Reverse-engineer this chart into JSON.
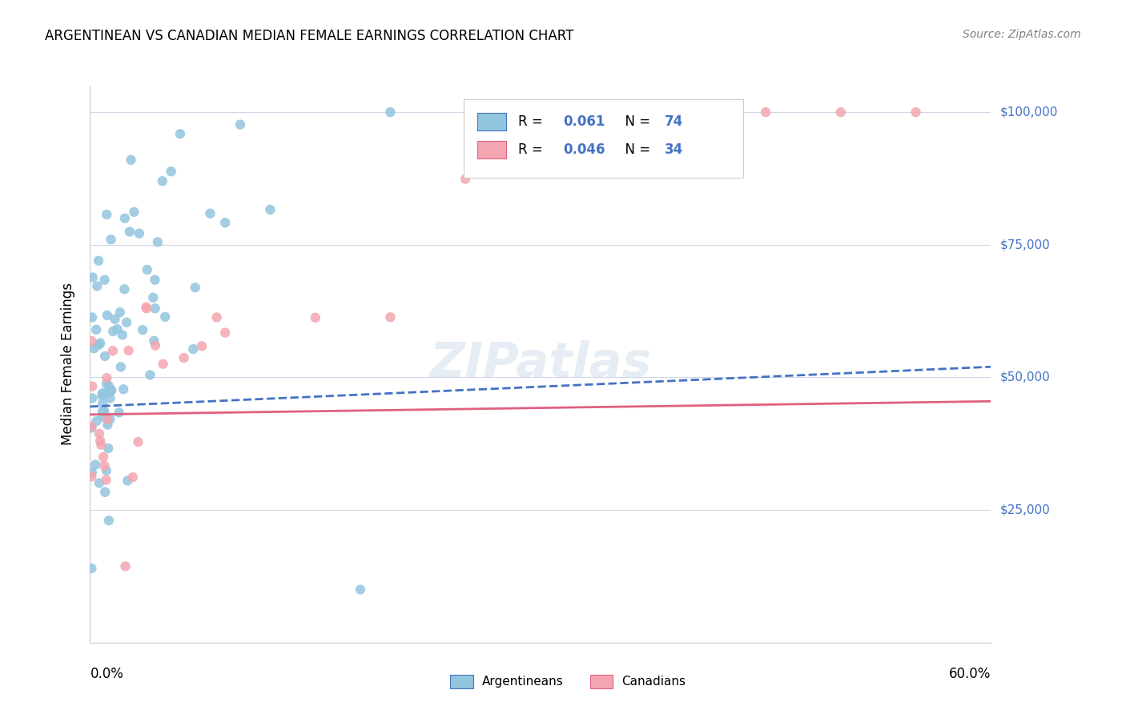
{
  "title": "ARGENTINEAN VS CANADIAN MEDIAN FEMALE EARNINGS CORRELATION CHART",
  "source": "Source: ZipAtlas.com",
  "ylabel": "Median Female Earnings",
  "yticks": [
    0,
    25000,
    50000,
    75000,
    100000
  ],
  "ytick_labels": [
    "",
    "$25,000",
    "$50,000",
    "$75,000",
    "$100,000"
  ],
  "xmin": 0.0,
  "xmax": 0.6,
  "ymin": 0,
  "ymax": 105000,
  "argentinean_color": "#92c5de",
  "canadian_color": "#f4a6b0",
  "argentinean_R": 0.061,
  "argentinean_N": 74,
  "canadian_R": 0.046,
  "canadian_N": 34,
  "trend_blue_color": "#4472c4",
  "trend_pink_color": "#e06080",
  "legend_R_N_color": "#4472c4",
  "watermark": "ZIPatlas",
  "trend_arg_x0": 0.0,
  "trend_arg_x1": 0.6,
  "trend_arg_y0": 44500,
  "trend_arg_y1": 52000,
  "trend_can_x0": 0.0,
  "trend_can_x1": 0.6,
  "trend_can_y0": 43000,
  "trend_can_y1": 45500
}
